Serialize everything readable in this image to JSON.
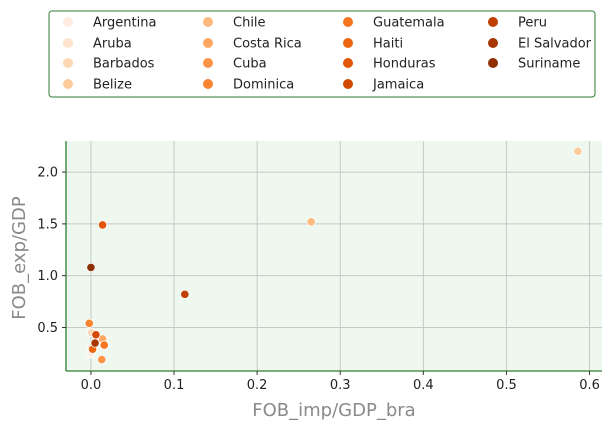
{
  "chart_data": {
    "type": "scatter",
    "title": "",
    "xlabel": "FOB_imp/GDP_bra",
    "ylabel": "FOB_exp/GDP",
    "xlim": [
      -0.03,
      0.615
    ],
    "ylim": [
      0.08,
      2.3
    ],
    "xticks": [
      0.0,
      0.1,
      0.2,
      0.3,
      0.4,
      0.5,
      0.6
    ],
    "xtick_labels": [
      "0.0",
      "0.1",
      "0.2",
      "0.3",
      "0.4",
      "0.5",
      "0.6"
    ],
    "yticks": [
      0.5,
      1.0,
      1.5,
      2.0
    ],
    "ytick_labels": [
      "0.5",
      "1.0",
      "1.5",
      "2.0"
    ],
    "grid": true,
    "plot_background": "#eef8ee",
    "axis_color": "#2e7d32",
    "legend_placement": "top",
    "legend_border_color": "#2e7d32",
    "series": [
      {
        "name": "Argentina",
        "color": "#feede0",
        "x": [
          0.0
        ],
        "y": [
          0.25
        ]
      },
      {
        "name": "Aruba",
        "color": "#fee4cd",
        "x": [
          0.001
        ],
        "y": [
          0.31
        ]
      },
      {
        "name": "Barbados",
        "color": "#fdd8b4",
        "x": [
          0.001
        ],
        "y": [
          0.45
        ]
      },
      {
        "name": "Belize",
        "color": "#fdcb9a",
        "x": [
          0.586
        ],
        "y": [
          2.2
        ]
      },
      {
        "name": "Chile",
        "color": "#fdb97e",
        "x": [
          0.265
        ],
        "y": [
          1.52
        ]
      },
      {
        "name": "Costa Rica",
        "color": "#fda762",
        "x": [
          0.014
        ],
        "y": [
          0.39
        ]
      },
      {
        "name": "Cuba",
        "color": "#fd9447",
        "x": [
          0.013
        ],
        "y": [
          0.19
        ]
      },
      {
        "name": "Dominica",
        "color": "#fb8431",
        "x": [
          -0.002
        ],
        "y": [
          0.54
        ]
      },
      {
        "name": "Guatemala",
        "color": "#f5741f",
        "x": [
          0.016
        ],
        "y": [
          0.33
        ]
      },
      {
        "name": "Haiti",
        "color": "#ee6510",
        "x": [
          0.002
        ],
        "y": [
          0.29
        ]
      },
      {
        "name": "Honduras",
        "color": "#e25609",
        "x": [
          0.014
        ],
        "y": [
          1.49
        ]
      },
      {
        "name": "Jamaica",
        "color": "#d44a03",
        "x": [
          0.006
        ],
        "y": [
          0.43
        ]
      },
      {
        "name": "Peru",
        "color": "#be4002",
        "x": [
          0.113
        ],
        "y": [
          0.82
        ]
      },
      {
        "name": "El Salvador",
        "color": "#a83703",
        "x": [
          0.005
        ],
        "y": [
          0.35
        ]
      },
      {
        "name": "Suriname",
        "color": "#8f2f04",
        "x": [
          0.0
        ],
        "y": [
          1.08
        ]
      }
    ]
  }
}
